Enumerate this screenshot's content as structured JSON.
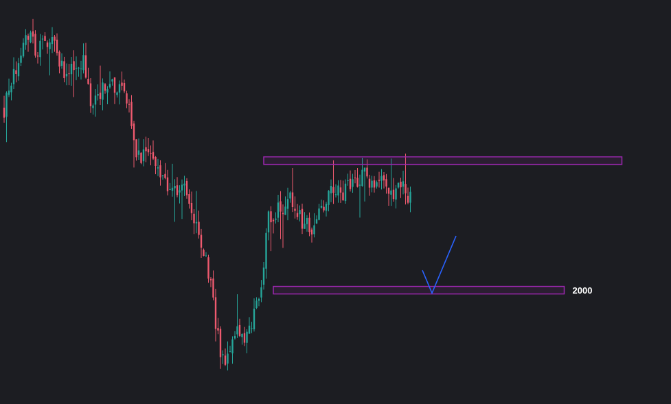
{
  "chart_data": {
    "type": "candlestick",
    "title": "",
    "xlabel": "",
    "ylabel": "",
    "ylim": [
      1600,
      3050
    ],
    "bar_count": 170,
    "grid": false,
    "colors": {
      "background": "#1c1d22",
      "up": "#26a69a",
      "down": "#ef5a6f",
      "zone_stroke": "#9c27b0",
      "zone_fill": "rgba(156,39,176,0.12)",
      "projection": "#2962ff",
      "label": "#ffffff"
    },
    "anchors": [
      [
        0,
        2660
      ],
      [
        3,
        2760
      ],
      [
        10,
        2930
      ],
      [
        14,
        2870
      ],
      [
        20,
        2890
      ],
      [
        26,
        2780
      ],
      [
        33,
        2830
      ],
      [
        37,
        2650
      ],
      [
        40,
        2720
      ],
      [
        44,
        2750
      ],
      [
        48,
        2740
      ],
      [
        52,
        2640
      ],
      [
        56,
        2480
      ],
      [
        60,
        2500
      ],
      [
        66,
        2420
      ],
      [
        70,
        2370
      ],
      [
        74,
        2380
      ],
      [
        78,
        2300
      ],
      [
        82,
        2190
      ],
      [
        86,
        2020
      ],
      [
        88,
        1880
      ],
      [
        90,
        1800
      ],
      [
        92,
        1740
      ],
      [
        96,
        1860
      ],
      [
        100,
        1820
      ],
      [
        104,
        1920
      ],
      [
        108,
        2090
      ],
      [
        110,
        2270
      ],
      [
        116,
        2310
      ],
      [
        120,
        2340
      ],
      [
        124,
        2260
      ],
      [
        128,
        2240
      ],
      [
        134,
        2320
      ],
      [
        138,
        2380
      ],
      [
        142,
        2360
      ],
      [
        146,
        2400
      ],
      [
        150,
        2420
      ],
      [
        154,
        2380
      ],
      [
        158,
        2400
      ],
      [
        162,
        2370
      ],
      [
        166,
        2380
      ],
      [
        169,
        2335
      ]
    ],
    "support_zone": {
      "low": 1995,
      "high": 2022,
      "start_bar": 112,
      "end_bar": 233,
      "label": "2000"
    },
    "resistance_zone": {
      "low": 2460,
      "high": 2487,
      "start_bar": 108,
      "end_bar": 257
    },
    "projection_path": [
      {
        "bar": 174,
        "price": 2080
      },
      {
        "bar": 178,
        "price": 1998
      },
      {
        "bar": 188,
        "price": 2203
      }
    ]
  }
}
